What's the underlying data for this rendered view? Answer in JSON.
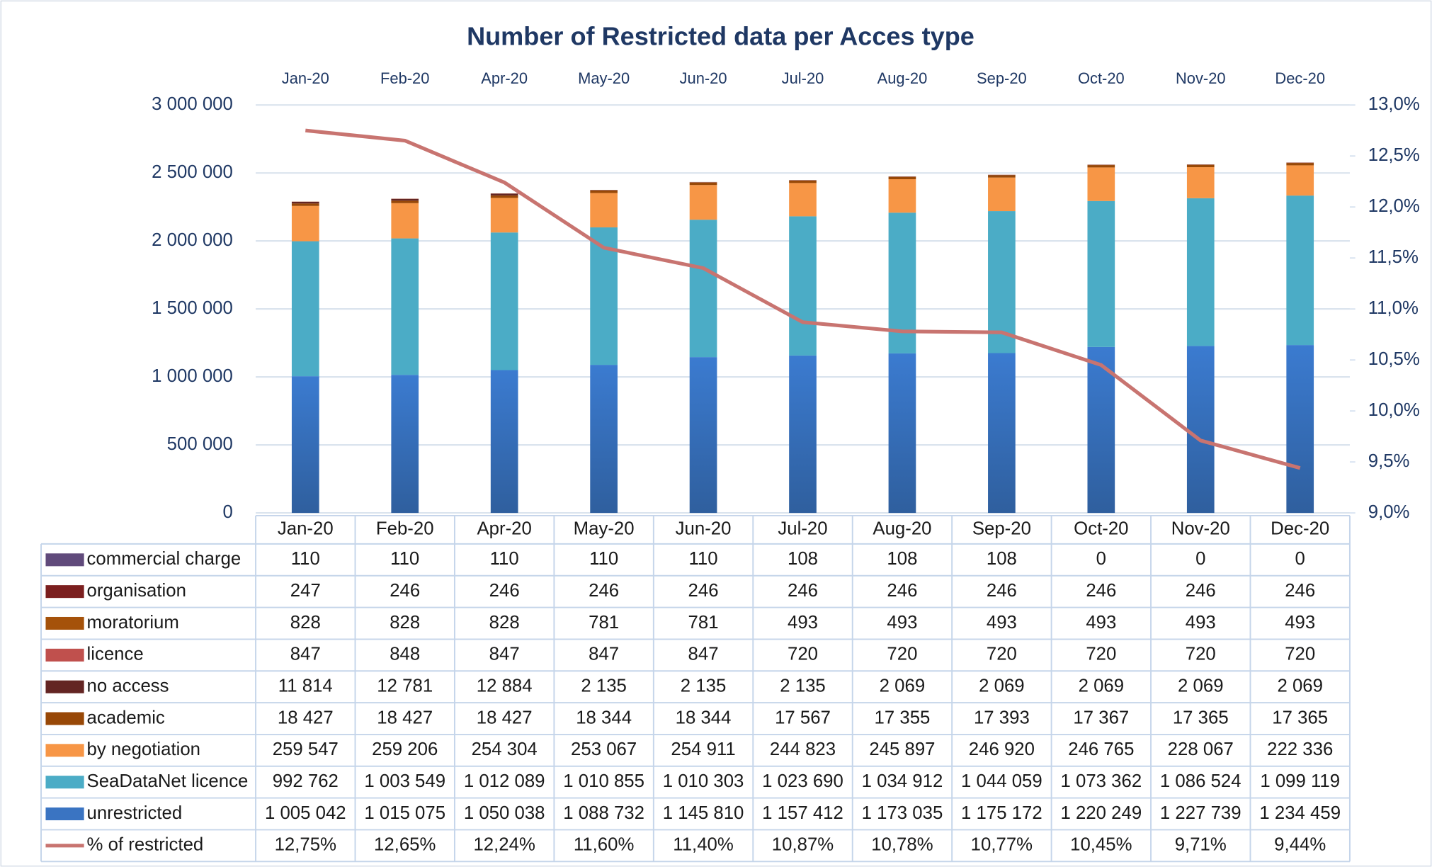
{
  "chart_data": {
    "type": "bar",
    "stacked": true,
    "title": "Number of Restricted data per Acces type",
    "categories": [
      "Jan-20",
      "Feb-20",
      "Apr-20",
      "May-20",
      "Jun-20",
      "Jul-20",
      "Aug-20",
      "Sep-20",
      "Oct-20",
      "Nov-20",
      "Dec-20"
    ],
    "ylim": [
      0,
      3000000
    ],
    "yticks": [
      0,
      {
        "value": 500000,
        "label": "500 000"
      },
      {
        "value": 1000000,
        "label": "1 000 000"
      },
      {
        "value": 1500000,
        "label": "1 500 000"
      },
      {
        "value": 2000000,
        "label": "2 000 000"
      },
      {
        "value": 2500000,
        "label": "2 500 000"
      },
      {
        "value": 3000000,
        "label": "3 000 000"
      }
    ],
    "y2lim": [
      9,
      13
    ],
    "y2ticks": [
      {
        "value": 9,
        "label": "9,0%"
      },
      {
        "value": 9.5,
        "label": "9,5%"
      },
      {
        "value": 10,
        "label": "10,0%"
      },
      {
        "value": 10.5,
        "label": "10,5%"
      },
      {
        "value": 11,
        "label": "11,0%"
      },
      {
        "value": 11.5,
        "label": "11,5%"
      },
      {
        "value": 12,
        "label": "12,0%"
      },
      {
        "value": 12.5,
        "label": "12,5%"
      },
      {
        "value": 13,
        "label": "13,0%"
      }
    ],
    "grid": true,
    "series": [
      {
        "name": "unrestricted",
        "color": "#3a74c2",
        "values": [
          1005042,
          1015075,
          1050038,
          1088732,
          1145810,
          1157412,
          1173035,
          1175172,
          1220249,
          1227739,
          1234459
        ],
        "value_labels": [
          "1 005 042",
          "1 015 075",
          "1 050 038",
          "1 088 732",
          "1 145 810",
          "1 157 412",
          "1 173 035",
          "1 175 172",
          "1 220 249",
          "1 227 739",
          "1 234 459"
        ]
      },
      {
        "name": "SeaDataNet licence",
        "color": "#4bacc6",
        "values": [
          992762,
          1003549,
          1012089,
          1010855,
          1010303,
          1023690,
          1034912,
          1044059,
          1073362,
          1086524,
          1099119
        ],
        "value_labels": [
          "992 762",
          "1 003 549",
          "1 012 089",
          "1 010 855",
          "1 010 303",
          "1 023 690",
          "1 034 912",
          "1 044 059",
          "1 073 362",
          "1 086 524",
          "1 099 119"
        ]
      },
      {
        "name": "by negotiation",
        "color": "#f79646",
        "values": [
          259547,
          259206,
          254304,
          253067,
          254911,
          244823,
          245897,
          246920,
          246765,
          228067,
          222336
        ],
        "value_labels": [
          "259 547",
          "259 206",
          "254 304",
          "253 067",
          "254 911",
          "244 823",
          "245 897",
          "246 920",
          "246 765",
          "228 067",
          "222 336"
        ]
      },
      {
        "name": "academic",
        "color": "#984807",
        "values": [
          18427,
          18427,
          18427,
          18344,
          18344,
          17567,
          17355,
          17393,
          17367,
          17365,
          17365
        ],
        "value_labels": [
          "18 427",
          "18 427",
          "18 427",
          "18 344",
          "18 344",
          "17 567",
          "17 355",
          "17 393",
          "17 367",
          "17 365",
          "17 365"
        ]
      },
      {
        "name": "no access",
        "color": "#632523",
        "values": [
          11814,
          12781,
          12884,
          2135,
          2135,
          2135,
          2069,
          2069,
          2069,
          2069,
          2069
        ],
        "value_labels": [
          "11 814",
          "12 781",
          "12 884",
          "2 135",
          "2 135",
          "2 135",
          "2 069",
          "2 069",
          "2 069",
          "2 069",
          "2 069"
        ]
      },
      {
        "name": "licence",
        "color": "#c0504d",
        "values": [
          847,
          848,
          847,
          847,
          847,
          720,
          720,
          720,
          720,
          720,
          720
        ]
      },
      {
        "name": "moratorium",
        "color": "#a5520a",
        "values": [
          828,
          828,
          828,
          781,
          781,
          493,
          493,
          493,
          493,
          493,
          493
        ]
      },
      {
        "name": "organisation",
        "color": "#7b1f1f",
        "values": [
          247,
          246,
          246,
          246,
          246,
          246,
          246,
          246,
          246,
          246,
          246
        ]
      },
      {
        "name": "commercial charge",
        "color": "#604a7b",
        "values": [
          110,
          110,
          110,
          110,
          110,
          108,
          108,
          108,
          0,
          0,
          0
        ]
      },
      {
        "name": "% of restricted",
        "type": "line",
        "axis": "y2",
        "color": "#c87470",
        "values": [
          12.75,
          12.65,
          12.24,
          11.6,
          11.4,
          10.87,
          10.78,
          10.77,
          10.45,
          9.71,
          9.44
        ],
        "value_labels": [
          "12,75%",
          "12,65%",
          "12,24%",
          "11,60%",
          "11,40%",
          "10,87%",
          "10,78%",
          "10,77%",
          "10,45%",
          "9,71%",
          "9,44%"
        ]
      }
    ]
  }
}
